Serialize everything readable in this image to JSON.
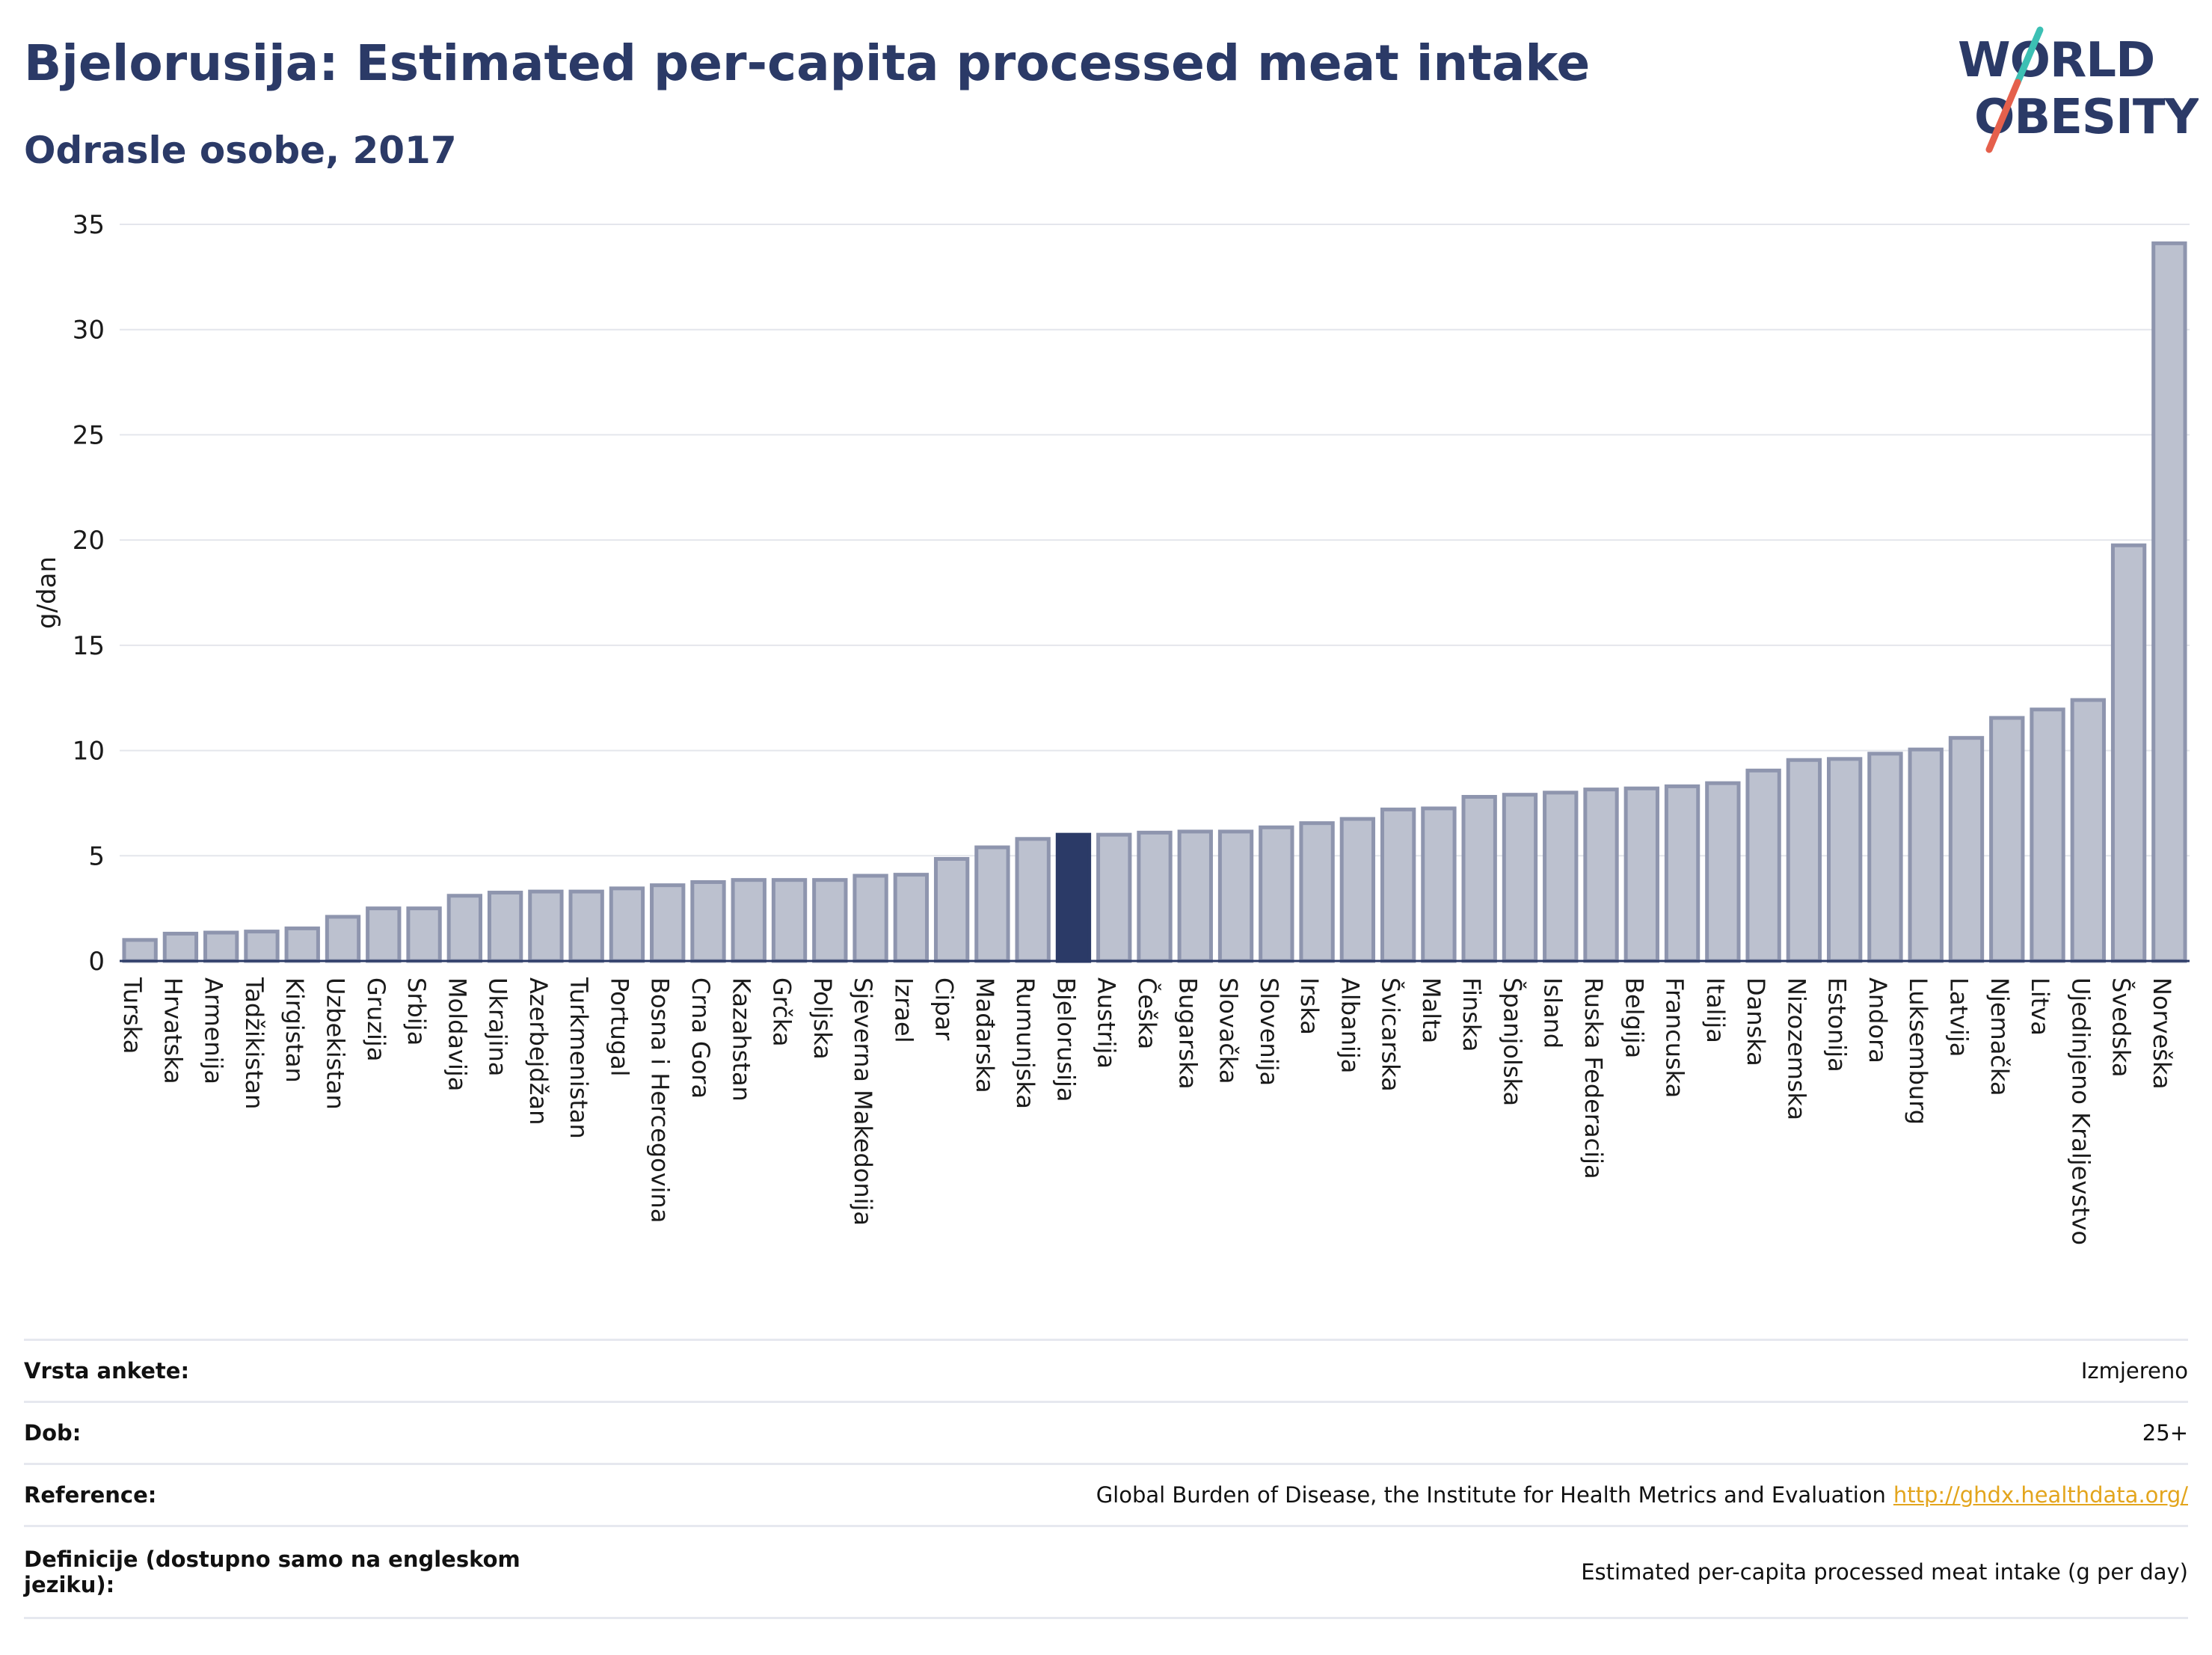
{
  "header": {
    "title": "Bjelorusija: Estimated per-capita processed meat intake",
    "subtitle": "Odrasle osobe, 2017"
  },
  "logo": {
    "line1": "WORLD",
    "line2": "OBESITY",
    "accent_teal": "#3cc0b4",
    "accent_red": "#e5604c",
    "text_color": "#2b3a67"
  },
  "chart_data": {
    "type": "bar",
    "ylabel": "g/dan",
    "xlabel": "",
    "ylim": [
      0,
      35
    ],
    "yticks": [
      0,
      5,
      10,
      15,
      20,
      25,
      30,
      35
    ],
    "grid": true,
    "highlight": "Bjelorusija",
    "colors": {
      "bar": "#bcc1cf",
      "bar_edge": "#8e95ae",
      "highlight": "#2b3a67",
      "grid": "#e4e6ec",
      "axis": "#2b3a67"
    },
    "categories": [
      "Turska",
      "Hrvatska",
      "Armenija",
      "Tadžikistan",
      "Kirgistan",
      "Uzbekistan",
      "Gruzija",
      "Srbija",
      "Moldavija",
      "Ukrajina",
      "Azerbejdžan",
      "Turkmenistan",
      "Portugal",
      "Bosna i Hercegovina",
      "Crna Gora",
      "Kazahstan",
      "Grčka",
      "Poljska",
      "Sjeverna Makedonija",
      "Izrael",
      "Cipar",
      "Mađarska",
      "Rumunjska",
      "Bjelorusija",
      "Austrija",
      "Češka",
      "Bugarska",
      "Slovačka",
      "Slovenija",
      "Irska",
      "Albanija",
      "Švicarska",
      "Malta",
      "Finska",
      "Španjolska",
      "Island",
      "Ruska Federacija",
      "Belgija",
      "Francuska",
      "Italija",
      "Danska",
      "Nizozemska",
      "Estonija",
      "Andora",
      "Luksemburg",
      "Latvija",
      "Njemačka",
      "Litva",
      "Ujedinjeno Kraljevstvo",
      "Švedska",
      "Norveška"
    ],
    "values": [
      1.0,
      1.3,
      1.35,
      1.4,
      1.55,
      2.1,
      2.5,
      2.5,
      3.1,
      3.25,
      3.3,
      3.3,
      3.45,
      3.6,
      3.75,
      3.85,
      3.85,
      3.85,
      4.05,
      4.1,
      4.85,
      5.4,
      5.8,
      6.0,
      6.0,
      6.1,
      6.15,
      6.15,
      6.35,
      6.55,
      6.75,
      7.2,
      7.25,
      7.8,
      7.9,
      8.0,
      8.15,
      8.2,
      8.3,
      8.45,
      9.05,
      9.55,
      9.6,
      9.85,
      10.05,
      10.6,
      11.55,
      11.95,
      12.4,
      19.75,
      34.1
    ]
  },
  "info": {
    "rows": [
      {
        "label": "Vrsta ankete:",
        "value": "Izmjereno"
      },
      {
        "label": "Dob:",
        "value": "25+"
      },
      {
        "label": "Reference:",
        "value": "Global Burden of Disease, the Institute for Health Metrics and Evaluation",
        "link": "http://ghdx.healthdata.org/"
      },
      {
        "label": "Definicije (dostupno samo na engleskom jeziku):",
        "value": "Estimated per-capita processed meat intake (g per day)"
      }
    ]
  }
}
